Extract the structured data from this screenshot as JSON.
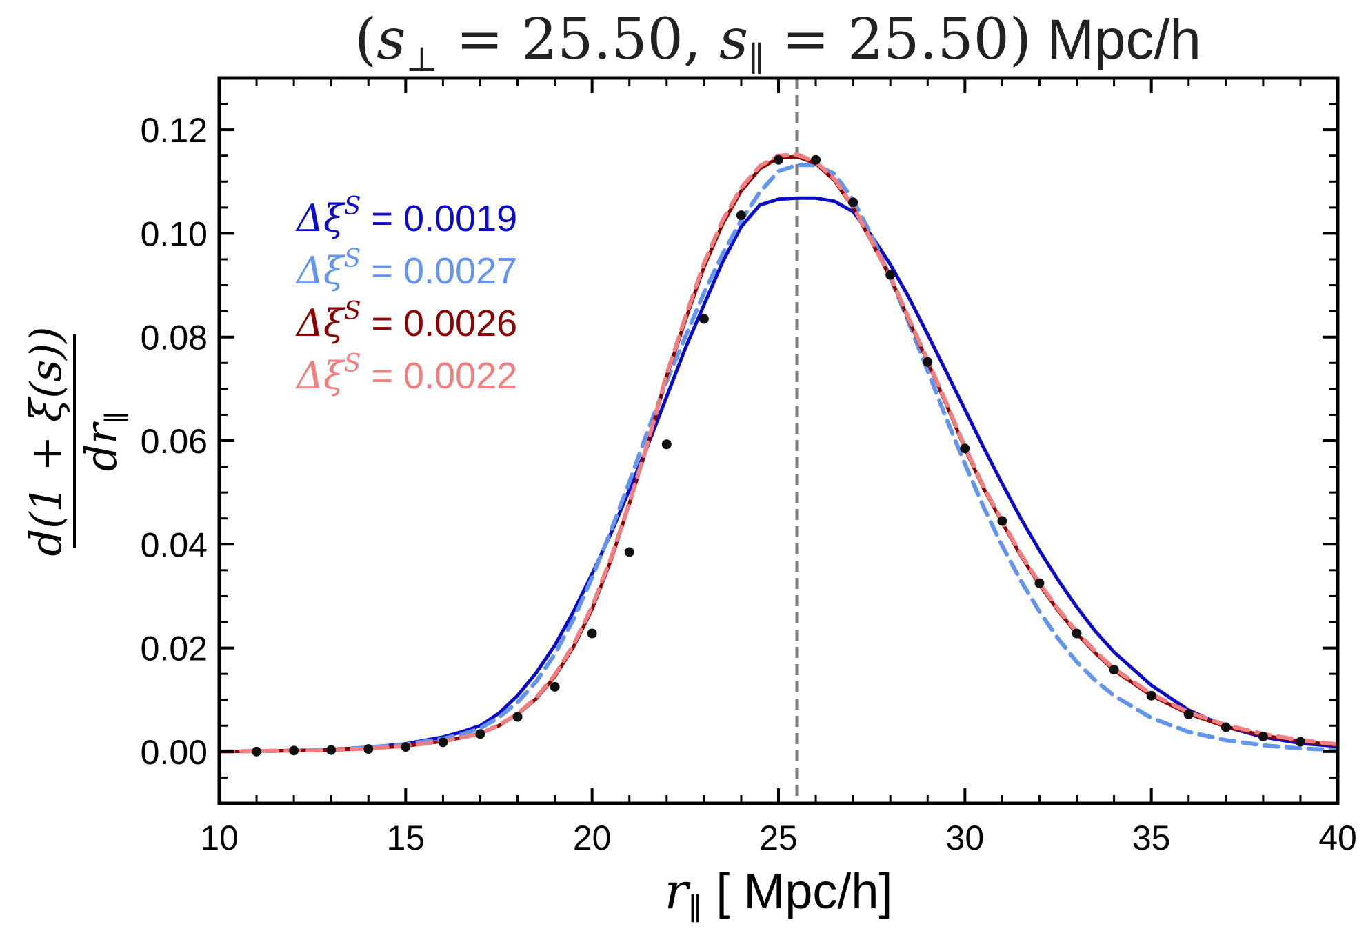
{
  "chart_data": {
    "type": "line",
    "title": {
      "open": "(",
      "s_perp_label": "s",
      "perp_sub": "⊥",
      "s_perp_value": "25.50",
      "comma": ",",
      "s_par_label": "s",
      "par_sub": "∥",
      "s_par_value": "25.50",
      "close": ")",
      "equals": "=",
      "unit": "Mpc/h"
    },
    "xlabel": {
      "symbol": "r",
      "sub": "∥",
      "unit": "[ Mpc/h]"
    },
    "ylabel": {
      "numerator": "d(1 + ξ(s))",
      "denominator_symbol": "dr",
      "denominator_sub": "∥"
    },
    "xlim": [
      10,
      40
    ],
    "ylim": [
      -0.01,
      0.13
    ],
    "x_ticks": [
      10,
      15,
      20,
      25,
      30,
      35,
      40
    ],
    "x_tick_labels": [
      "10",
      "15",
      "20",
      "25",
      "30",
      "35",
      "40"
    ],
    "y_ticks": [
      0.0,
      0.02,
      0.04,
      0.06,
      0.08,
      0.1,
      0.12
    ],
    "y_tick_labels": [
      "0.00",
      "0.02",
      "0.04",
      "0.06",
      "0.08",
      "0.10",
      "0.12"
    ],
    "vline": {
      "x": 25.5,
      "color": "#808080",
      "style": "dashed"
    },
    "legend_position": "upper-left",
    "legend": [
      {
        "prefix": "Δξ",
        "sup": "S",
        "text": "= 0.0019",
        "color": "#0a0ac8"
      },
      {
        "prefix": "Δξ",
        "sup": "S",
        "text": "= 0.0027",
        "color": "#6495ed"
      },
      {
        "prefix": "Δξ",
        "sup": "S",
        "text": "= 0.0026",
        "color": "#8b0000"
      },
      {
        "prefix": "Δξ",
        "sup": "S",
        "text": "= 0.0022",
        "color": "#f08080"
      }
    ],
    "points": {
      "name": "data",
      "color": "#111111",
      "x": [
        11,
        12,
        13,
        14,
        15,
        16,
        17,
        18,
        19,
        20,
        21,
        22,
        23,
        24,
        25,
        26,
        27,
        28,
        29,
        30,
        31,
        32,
        33,
        34,
        35,
        36,
        37,
        38,
        39
      ],
      "y": [
        0.0,
        0.0002,
        0.0003,
        0.0005,
        0.0009,
        0.0018,
        0.0034,
        0.0067,
        0.0125,
        0.0228,
        0.0385,
        0.0593,
        0.0835,
        0.1035,
        0.1142,
        0.1142,
        0.106,
        0.092,
        0.0752,
        0.0585,
        0.0445,
        0.0325,
        0.0228,
        0.0158,
        0.0108,
        0.0072,
        0.0047,
        0.0029,
        0.0019
      ]
    },
    "series": [
      {
        "name": "Δξ^S = 0.0019",
        "color": "#0a0ac8",
        "style": "solid",
        "x": [
          10,
          11,
          12,
          13,
          14,
          15,
          16,
          16.5,
          17,
          17.5,
          18,
          18.5,
          19,
          19.5,
          20,
          20.5,
          21,
          21.5,
          22,
          22.5,
          23,
          23.5,
          24,
          24.5,
          25,
          25.5,
          26,
          26.5,
          27,
          27.5,
          28,
          28.5,
          29,
          29.5,
          30,
          30.5,
          31,
          31.5,
          32,
          32.5,
          33,
          33.5,
          34,
          35,
          36,
          37,
          38,
          39,
          40
        ],
        "y": [
          0.0,
          0.0001,
          0.0002,
          0.0004,
          0.0008,
          0.0015,
          0.0028,
          0.0038,
          0.005,
          0.0074,
          0.0108,
          0.0152,
          0.0205,
          0.027,
          0.0343,
          0.042,
          0.0505,
          0.0592,
          0.0685,
          0.0778,
          0.0862,
          0.0945,
          0.1013,
          0.1055,
          0.1066,
          0.1068,
          0.1068,
          0.1062,
          0.1042,
          0.0995,
          0.094,
          0.0876,
          0.0805,
          0.0733,
          0.066,
          0.0587,
          0.0517,
          0.045,
          0.0388,
          0.0331,
          0.0279,
          0.0232,
          0.0192,
          0.0128,
          0.008,
          0.0048,
          0.0028,
          0.0016,
          0.001
        ]
      },
      {
        "name": "Δξ^S = 0.0027",
        "color": "#6495ed",
        "style": "dashed",
        "x": [
          10,
          11,
          12,
          13,
          14,
          15,
          16,
          16.5,
          17,
          17.5,
          18,
          18.5,
          19,
          19.5,
          20,
          20.5,
          21,
          21.5,
          22,
          22.5,
          23,
          23.5,
          24,
          24.5,
          25,
          25.5,
          26,
          26.5,
          27,
          27.5,
          28,
          28.5,
          29,
          29.5,
          30,
          30.5,
          31,
          31.5,
          32,
          32.5,
          33,
          33.5,
          34,
          35,
          36,
          37,
          38,
          39,
          40
        ],
        "y": [
          0.0,
          0.0001,
          0.0002,
          0.0004,
          0.0008,
          0.0014,
          0.0025,
          0.0033,
          0.0045,
          0.0066,
          0.0095,
          0.0135,
          0.0188,
          0.0255,
          0.0336,
          0.0425,
          0.052,
          0.062,
          0.0715,
          0.08,
          0.0885,
          0.096,
          0.1025,
          0.108,
          0.112,
          0.1132,
          0.1132,
          0.1115,
          0.1065,
          0.0995,
          0.0915,
          0.0827,
          0.0735,
          0.0643,
          0.0555,
          0.0472,
          0.0397,
          0.033,
          0.027,
          0.0218,
          0.0173,
          0.0137,
          0.0108,
          0.0065,
          0.0038,
          0.0022,
          0.0012,
          0.0006,
          0.0003
        ]
      },
      {
        "name": "Δξ^S = 0.0026",
        "color": "#8b0000",
        "style": "solid",
        "x": [
          10,
          11,
          12,
          13,
          14,
          15,
          16,
          16.5,
          17,
          17.5,
          18,
          18.5,
          19,
          19.5,
          20,
          20.5,
          21,
          21.5,
          22,
          22.5,
          23,
          23.5,
          24,
          24.5,
          25,
          25.5,
          26,
          26.5,
          27,
          27.5,
          28,
          28.5,
          29,
          29.5,
          30,
          30.5,
          31,
          31.5,
          32,
          32.5,
          33,
          33.5,
          34,
          35,
          36,
          37,
          38,
          39,
          40
        ],
        "y": [
          0.0,
          0.0001,
          0.0002,
          0.0003,
          0.0006,
          0.0011,
          0.002,
          0.0027,
          0.0035,
          0.005,
          0.0072,
          0.0102,
          0.0145,
          0.0202,
          0.0275,
          0.0368,
          0.0478,
          0.0595,
          0.0725,
          0.0832,
          0.0935,
          0.1018,
          0.1082,
          0.1125,
          0.1146,
          0.1148,
          0.1135,
          0.1102,
          0.105,
          0.0983,
          0.0915,
          0.0832,
          0.0752,
          0.067,
          0.0585,
          0.0508,
          0.0442,
          0.0378,
          0.0322,
          0.0272,
          0.0228,
          0.019,
          0.0157,
          0.0108,
          0.0073,
          0.0048,
          0.0031,
          0.002,
          0.0012
        ]
      },
      {
        "name": "Δξ^S = 0.0022",
        "color": "#f08080",
        "style": "dashed",
        "x": [
          10,
          11,
          12,
          13,
          14,
          15,
          16,
          16.5,
          17,
          17.5,
          18,
          18.5,
          19,
          19.5,
          20,
          20.5,
          21,
          21.5,
          22,
          22.5,
          23,
          23.5,
          24,
          24.5,
          25,
          25.5,
          26,
          26.5,
          27,
          27.5,
          28,
          28.5,
          29,
          29.5,
          30,
          30.5,
          31,
          31.5,
          32,
          32.5,
          33,
          33.5,
          34,
          35,
          36,
          37,
          38,
          39,
          40
        ],
        "y": [
          0.0,
          0.0001,
          0.0002,
          0.0003,
          0.0006,
          0.0011,
          0.002,
          0.0027,
          0.0035,
          0.0051,
          0.0073,
          0.0104,
          0.0148,
          0.0206,
          0.028,
          0.0372,
          0.048,
          0.0598,
          0.0728,
          0.0838,
          0.0942,
          0.1025,
          0.1088,
          0.113,
          0.115,
          0.1152,
          0.1138,
          0.1105,
          0.1052,
          0.0985,
          0.0917,
          0.0835,
          0.0755,
          0.0673,
          0.0588,
          0.0511,
          0.0445,
          0.0381,
          0.0325,
          0.0275,
          0.0231,
          0.0193,
          0.016,
          0.0111,
          0.0076,
          0.0051,
          0.0034,
          0.0022,
          0.0014
        ]
      }
    ]
  }
}
